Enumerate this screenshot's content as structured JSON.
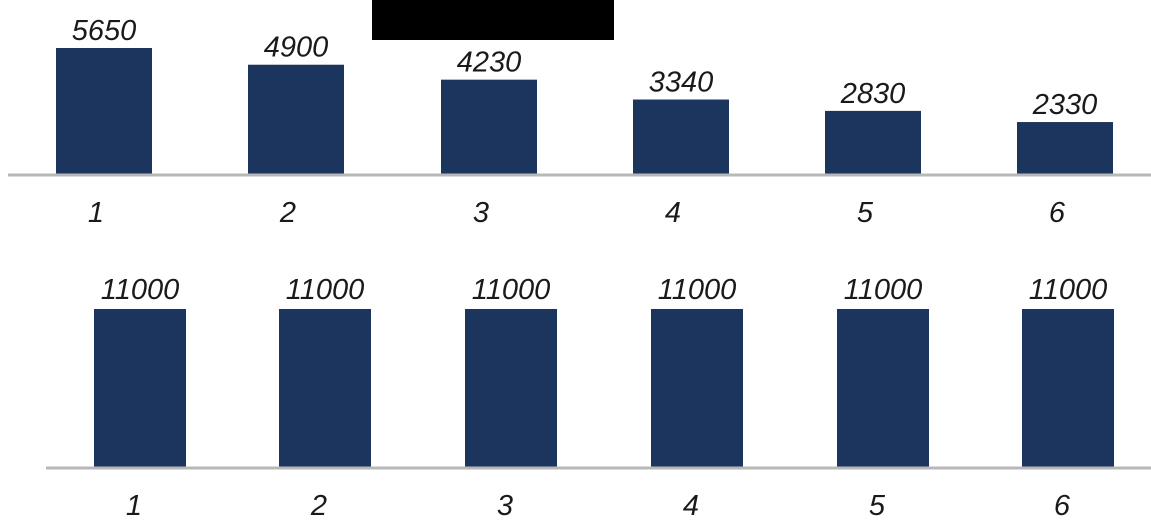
{
  "colors": {
    "bar": "#1b355e",
    "axis": "#b8b8b8",
    "text": "#1a1a1a",
    "redaction": "#000000"
  },
  "chart_data": [
    {
      "type": "bar",
      "categories": [
        "1",
        "2",
        "3",
        "4",
        "5",
        "6"
      ],
      "values": [
        5650,
        4900,
        4230,
        3340,
        2830,
        2330
      ],
      "data_labels": [
        "5650",
        "4900",
        "4230",
        "3340",
        "2830",
        "2330"
      ],
      "title": "",
      "xlabel": "",
      "ylabel": "",
      "ylim": [
        0,
        5650
      ],
      "grid": false,
      "legend": "none"
    },
    {
      "type": "bar",
      "categories": [
        "1",
        "2",
        "3",
        "4",
        "5",
        "6"
      ],
      "values": [
        11000,
        11000,
        11000,
        11000,
        11000,
        11000
      ],
      "data_labels": [
        "11000",
        "11000",
        "11000",
        "11000",
        "11000",
        "11000"
      ],
      "title": "",
      "xlabel": "",
      "ylabel": "",
      "ylim": [
        0,
        11000
      ],
      "grid": false,
      "legend": "none"
    }
  ]
}
